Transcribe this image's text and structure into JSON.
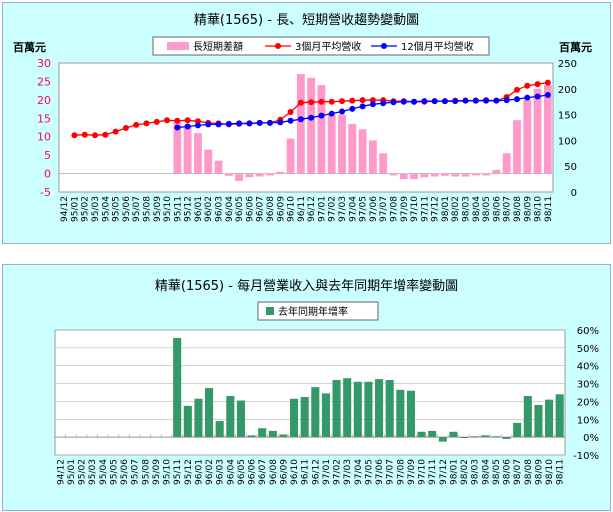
{
  "chart_data": [
    {
      "type": "bar+line",
      "title": "精華(1565) - 長、短期營收趨勢變動圖",
      "left_axis_label": "百萬元",
      "right_axis_label": "百萬元",
      "left_ylim": [
        -5,
        30
      ],
      "left_ticks": [
        "30",
        "25",
        "20",
        "15",
        "10",
        "5",
        "0",
        "-5"
      ],
      "right_ylim": [
        0,
        250
      ],
      "right_ticks": [
        "250",
        "200",
        "150",
        "100",
        "50",
        "0"
      ],
      "categories": [
        "94/12",
        "95/01",
        "95/02",
        "95/03",
        "95/04",
        "95/05",
        "95/06",
        "95/07",
        "95/08",
        "95/09",
        "95/10",
        "95/11",
        "95/12",
        "96/01",
        "96/02",
        "96/03",
        "96/04",
        "96/05",
        "96/06",
        "96/07",
        "96/08",
        "96/09",
        "96/10",
        "96/11",
        "96/12",
        "97/01",
        "97/02",
        "97/03",
        "97/04",
        "97/05",
        "97/06",
        "97/07",
        "97/08",
        "97/09",
        "97/10",
        "97/11",
        "97/12",
        "98/01",
        "98/02",
        "98/03",
        "98/04",
        "98/05",
        "98/06",
        "98/07",
        "98/08",
        "98/09",
        "98/10",
        "98/11"
      ],
      "series": [
        {
          "name": "長短期差額",
          "kind": "bar",
          "axis": "left",
          "color": "#ff99cc",
          "values": [
            null,
            null,
            null,
            null,
            null,
            null,
            null,
            null,
            null,
            null,
            null,
            14,
            13,
            11,
            6.5,
            3.5,
            -0.6,
            -2,
            -1,
            -0.8,
            -0.5,
            0.5,
            9.5,
            27,
            26,
            24,
            16,
            16,
            13.5,
            12,
            9,
            5.5,
            -0.5,
            -1.5,
            -1.5,
            -1,
            -0.8,
            -0.6,
            -0.8,
            -0.8,
            -0.5,
            -0.5,
            1,
            5.5,
            14.5,
            20,
            23,
            24
          ]
        },
        {
          "name": "3個月平均營收",
          "kind": "line",
          "axis": "right",
          "color": "#ff0000",
          "values": [
            null,
            110,
            111,
            110,
            111,
            117,
            124,
            130,
            133,
            136,
            139,
            138,
            139,
            137,
            134,
            133,
            131,
            132,
            133,
            134,
            134,
            140,
            155,
            173,
            174,
            175,
            175,
            176,
            177,
            178,
            178,
            178,
            176,
            176,
            175,
            175,
            176,
            176,
            177,
            177,
            177,
            178,
            177,
            184,
            198,
            206,
            209,
            212
          ]
        },
        {
          "name": "12個月平均營收",
          "kind": "line",
          "axis": "right",
          "color": "#0000ff",
          "values": [
            null,
            null,
            null,
            null,
            null,
            null,
            null,
            null,
            null,
            null,
            null,
            125,
            127,
            129,
            131,
            131,
            132,
            133,
            133,
            134,
            134,
            135,
            138,
            141,
            144,
            148,
            152,
            156,
            161,
            166,
            170,
            172,
            174,
            175,
            175,
            176,
            176,
            176,
            176,
            177,
            177,
            177,
            177,
            178,
            180,
            183,
            185,
            188
          ]
        }
      ]
    },
    {
      "type": "bar",
      "title": "精華(1565) -  每月營業收入與去年同期年增率變動圖",
      "ylim": [
        -10,
        60
      ],
      "ticks": [
        "60%",
        "50%",
        "40%",
        "30%",
        "20%",
        "10%",
        "0%",
        "-10%"
      ],
      "categories": [
        "94/12",
        "95/01",
        "95/02",
        "95/03",
        "95/04",
        "95/05",
        "95/06",
        "95/07",
        "95/08",
        "95/09",
        "95/10",
        "95/11",
        "95/12",
        "96/01",
        "96/02",
        "96/03",
        "96/04",
        "96/05",
        "96/06",
        "96/07",
        "96/08",
        "96/09",
        "96/10",
        "96/11",
        "96/12",
        "97/01",
        "97/02",
        "97/03",
        "97/04",
        "97/05",
        "97/06",
        "97/07",
        "97/08",
        "97/09",
        "97/10",
        "97/11",
        "97/12",
        "98/01",
        "98/02",
        "98/03",
        "98/04",
        "98/05",
        "98/06",
        "98/07",
        "98/08",
        "98/09",
        "98/10",
        "98/11"
      ],
      "series": [
        {
          "name": "去年同期年增率",
          "color": "#339966",
          "values": [
            0,
            0,
            0,
            0,
            0,
            0,
            0,
            0,
            0,
            0,
            0,
            55.5,
            17.5,
            21.5,
            27.5,
            9,
            23,
            20.5,
            1,
            5,
            3.5,
            1.5,
            21.5,
            22.5,
            28,
            24.5,
            32,
            33,
            31,
            31,
            32.5,
            32,
            26.5,
            26,
            3,
            3.5,
            -2.5,
            3,
            -0.5,
            0.5,
            1,
            0.5,
            -1,
            8,
            23,
            18,
            21,
            24
          ]
        }
      ]
    }
  ]
}
